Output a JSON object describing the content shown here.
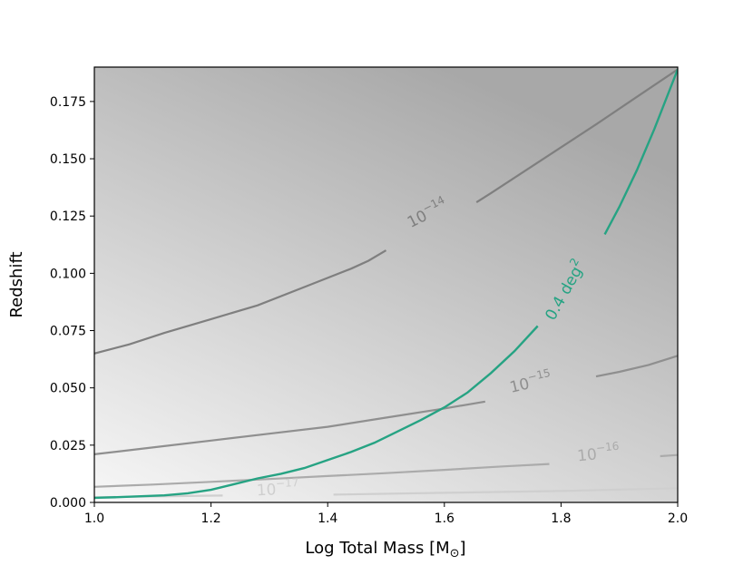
{
  "chart_data": {
    "type": "contour",
    "xlabel": "Log Total Mass [M",
    "xlabel_sub": "⊙",
    "xlabel_end": "]",
    "ylabel": "Redshift",
    "xlim": [
      1.0,
      2.0
    ],
    "ylim": [
      0.0,
      0.19
    ],
    "x_ticks": [
      1.0,
      1.2,
      1.4,
      1.6,
      1.8,
      2.0
    ],
    "x_tick_labels": [
      "1.0",
      "1.2",
      "1.4",
      "1.6",
      "1.8",
      "2.0"
    ],
    "y_ticks": [
      0.0,
      0.025,
      0.05,
      0.075,
      0.1,
      0.125,
      0.15,
      0.175
    ],
    "y_tick_labels": [
      "0.000",
      "0.025",
      "0.050",
      "0.075",
      "0.100",
      "0.125",
      "0.150",
      "0.175"
    ],
    "grid": false,
    "background_gradient": {
      "darkest": "#a8a8a8",
      "lightest": "#f7f7f7"
    },
    "contours": [
      {
        "base": "10",
        "exp": "−14",
        "color": "#7f7f7f",
        "label_at": {
          "x": 1.575,
          "y": 0.124,
          "angle": -27
        },
        "segments": [
          [
            [
              1.0,
              0.065
            ],
            [
              1.06,
              0.069
            ],
            [
              1.12,
              0.074
            ],
            [
              1.2,
              0.08
            ],
            [
              1.28,
              0.086
            ],
            [
              1.36,
              0.094
            ],
            [
              1.44,
              0.102
            ],
            [
              1.47,
              0.1055
            ],
            [
              1.5,
              0.11
            ]
          ],
          [
            [
              1.655,
              0.131
            ],
            [
              1.68,
              0.135
            ],
            [
              1.74,
              0.145
            ],
            [
              1.8,
              0.155
            ],
            [
              1.86,
              0.165
            ],
            [
              1.93,
              0.177
            ],
            [
              2.0,
              0.189
            ]
          ]
        ]
      },
      {
        "base": "10",
        "exp": "−15",
        "color": "#8f8f8f",
        "label_at": {
          "x": 1.75,
          "y": 0.05,
          "angle": -13
        },
        "segments": [
          [
            [
              1.0,
              0.021
            ],
            [
              1.1,
              0.024
            ],
            [
              1.2,
              0.027
            ],
            [
              1.3,
              0.03
            ],
            [
              1.4,
              0.033
            ],
            [
              1.5,
              0.037
            ],
            [
              1.6,
              0.041
            ],
            [
              1.67,
              0.044
            ]
          ],
          [
            [
              1.86,
              0.055
            ],
            [
              1.9,
              0.057
            ],
            [
              1.95,
              0.06
            ],
            [
              2.0,
              0.064
            ]
          ]
        ]
      },
      {
        "base": "10",
        "exp": "−16",
        "color": "#ababab",
        "label_at": {
          "x": 1.865,
          "y": 0.019,
          "angle": -6
        },
        "segments": [
          [
            [
              1.0,
              0.0068
            ],
            [
              1.1,
              0.0078
            ],
            [
              1.2,
              0.009
            ],
            [
              1.3,
              0.0102
            ],
            [
              1.4,
              0.0115
            ],
            [
              1.5,
              0.0128
            ],
            [
              1.6,
              0.0142
            ],
            [
              1.7,
              0.0157
            ],
            [
              1.78,
              0.0168
            ]
          ],
          [
            [
              1.97,
              0.0202
            ],
            [
              2.0,
              0.0207
            ]
          ]
        ]
      },
      {
        "base": "10",
        "exp": "−17",
        "color": "#cfcfcf",
        "label_at": {
          "x": 1.315,
          "y": 0.0035,
          "angle": -3
        },
        "segments": [
          [
            [
              1.0,
              0.0022
            ],
            [
              1.1,
              0.0026
            ],
            [
              1.22,
              0.003
            ]
          ],
          [
            [
              1.41,
              0.0034
            ],
            [
              1.6,
              0.0042
            ],
            [
              1.8,
              0.005
            ],
            [
              2.0,
              0.0062
            ]
          ]
        ]
      }
    ],
    "highlight_contour": {
      "label": "0.4 deg",
      "label_sup": "2",
      "color": "#26a383",
      "label_at": {
        "x": 1.815,
        "y": 0.0915,
        "angle": -61
      },
      "segments": [
        [
          [
            1.0,
            0.002
          ],
          [
            1.04,
            0.0023
          ],
          [
            1.08,
            0.0027
          ],
          [
            1.12,
            0.0031
          ],
          [
            1.16,
            0.004
          ],
          [
            1.2,
            0.0055
          ],
          [
            1.24,
            0.008
          ],
          [
            1.28,
            0.0105
          ],
          [
            1.32,
            0.0125
          ],
          [
            1.36,
            0.015
          ],
          [
            1.4,
            0.0185
          ],
          [
            1.44,
            0.022
          ],
          [
            1.48,
            0.026
          ],
          [
            1.52,
            0.031
          ],
          [
            1.56,
            0.036
          ],
          [
            1.6,
            0.0415
          ],
          [
            1.64,
            0.048
          ],
          [
            1.68,
            0.0565
          ],
          [
            1.72,
            0.066
          ],
          [
            1.76,
            0.077
          ]
        ],
        [
          [
            1.875,
            0.117
          ],
          [
            1.9,
            0.129
          ],
          [
            1.93,
            0.145
          ],
          [
            1.96,
            0.163
          ],
          [
            2.0,
            0.189
          ]
        ]
      ]
    }
  }
}
